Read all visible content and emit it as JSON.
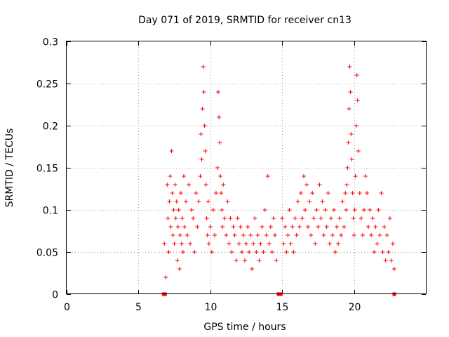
{
  "chart_data": {
    "type": "scatter",
    "title": "Day 071 of 2019, SRMTID for receiver cn13",
    "xlabel": "GPS time / hours",
    "ylabel": "SRMTID / TECUs",
    "xlim": [
      0,
      25
    ],
    "ylim": [
      0,
      0.3
    ],
    "x_ticks": [
      0,
      5,
      10,
      15,
      20
    ],
    "x_tick_labels": [
      "0",
      "5",
      "10",
      "15",
      "20"
    ],
    "y_ticks": [
      0,
      0.05,
      0.1,
      0.15,
      0.2,
      0.25,
      0.3
    ],
    "y_tick_labels": [
      "0",
      "0.05",
      "0.1",
      "0.15",
      "0.2",
      "0.25",
      "0.3"
    ],
    "grid": true,
    "marker": "plus",
    "color": "#ff0000",
    "zero_markers": [
      6.75,
      6.85,
      14.75,
      14.85,
      14.9,
      22.8
    ],
    "series": [
      {
        "name": "SRMTID",
        "x": [
          6.8,
          6.9,
          7.0,
          7.05,
          7.1,
          7.15,
          7.2,
          7.25,
          7.3,
          7.35,
          7.4,
          7.45,
          7.5,
          7.55,
          7.6,
          7.65,
          7.7,
          7.75,
          7.8,
          7.85,
          7.9,
          7.95,
          8.0,
          8.05,
          8.1,
          8.15,
          8.2,
          8.3,
          8.4,
          8.5,
          8.6,
          8.7,
          8.8,
          8.9,
          9.0,
          9.1,
          9.2,
          9.3,
          9.35,
          9.4,
          9.45,
          9.5,
          9.55,
          9.6,
          9.65,
          9.7,
          9.75,
          9.8,
          9.85,
          9.9,
          10.0,
          10.1,
          10.2,
          10.3,
          10.4,
          10.5,
          10.55,
          10.6,
          10.65,
          10.7,
          10.75,
          10.8,
          10.85,
          10.9,
          11.0,
          11.1,
          11.2,
          11.3,
          11.4,
          11.5,
          11.6,
          11.7,
          11.8,
          11.9,
          12.0,
          12.1,
          12.2,
          12.3,
          12.4,
          12.5,
          12.6,
          12.7,
          12.8,
          12.9,
          13.0,
          13.1,
          13.2,
          13.3,
          13.4,
          13.5,
          13.6,
          13.7,
          13.8,
          13.9,
          14.0,
          14.1,
          14.2,
          14.3,
          14.4,
          14.5,
          14.6,
          15.0,
          15.1,
          15.2,
          15.3,
          15.4,
          15.5,
          15.6,
          15.7,
          15.8,
          15.9,
          16.0,
          16.1,
          16.2,
          16.3,
          16.4,
          16.5,
          16.6,
          16.7,
          16.8,
          16.9,
          17.0,
          17.1,
          17.2,
          17.3,
          17.4,
          17.5,
          17.6,
          17.7,
          17.8,
          17.9,
          18.0,
          18.1,
          18.2,
          18.3,
          18.4,
          18.5,
          18.6,
          18.7,
          18.8,
          18.9,
          19.0,
          19.1,
          19.2,
          19.3,
          19.4,
          19.45,
          19.5,
          19.55,
          19.6,
          19.65,
          19.7,
          19.75,
          19.8,
          19.85,
          19.9,
          19.95,
          20.0,
          20.05,
          20.1,
          20.15,
          20.2,
          20.25,
          20.3,
          20.4,
          20.5,
          20.6,
          20.7,
          20.8,
          20.9,
          21.0,
          21.1,
          21.2,
          21.3,
          21.4,
          21.5,
          21.6,
          21.7,
          21.8,
          21.9,
          22.0,
          22.1,
          22.2,
          22.3,
          22.4,
          22.5,
          22.6,
          22.7,
          22.8
        ],
        "y": [
          0.06,
          0.02,
          0.13,
          0.09,
          0.05,
          0.11,
          0.14,
          0.08,
          0.17,
          0.12,
          0.07,
          0.1,
          0.06,
          0.13,
          0.09,
          0.11,
          0.04,
          0.08,
          0.1,
          0.03,
          0.07,
          0.12,
          0.06,
          0.09,
          0.05,
          0.14,
          0.08,
          0.11,
          0.07,
          0.13,
          0.06,
          0.1,
          0.09,
          0.05,
          0.12,
          0.08,
          0.11,
          0.14,
          0.19,
          0.16,
          0.22,
          0.27,
          0.24,
          0.2,
          0.17,
          0.13,
          0.09,
          0.07,
          0.11,
          0.06,
          0.08,
          0.05,
          0.1,
          0.07,
          0.12,
          0.15,
          0.24,
          0.21,
          0.18,
          0.14,
          0.12,
          0.1,
          0.08,
          0.13,
          0.09,
          0.07,
          0.11,
          0.06,
          0.09,
          0.05,
          0.08,
          0.07,
          0.04,
          0.09,
          0.06,
          0.08,
          0.05,
          0.07,
          0.04,
          0.06,
          0.08,
          0.05,
          0.07,
          0.03,
          0.06,
          0.09,
          0.05,
          0.07,
          0.04,
          0.06,
          0.08,
          0.05,
          0.1,
          0.07,
          0.14,
          0.06,
          0.08,
          0.05,
          0.09,
          0.07,
          0.04,
          0.09,
          0.06,
          0.08,
          0.05,
          0.07,
          0.1,
          0.06,
          0.08,
          0.05,
          0.09,
          0.07,
          0.11,
          0.08,
          0.12,
          0.09,
          0.14,
          0.1,
          0.13,
          0.08,
          0.11,
          0.07,
          0.12,
          0.09,
          0.06,
          0.1,
          0.08,
          0.13,
          0.09,
          0.11,
          0.07,
          0.1,
          0.08,
          0.12,
          0.06,
          0.09,
          0.07,
          0.1,
          0.05,
          0.08,
          0.06,
          0.09,
          0.07,
          0.11,
          0.08,
          0.12,
          0.1,
          0.13,
          0.15,
          0.18,
          0.22,
          0.27,
          0.24,
          0.19,
          0.16,
          0.12,
          0.09,
          0.07,
          0.1,
          0.14,
          0.2,
          0.26,
          0.23,
          0.17,
          0.12,
          0.09,
          0.07,
          0.1,
          0.14,
          0.12,
          0.08,
          0.1,
          0.07,
          0.09,
          0.05,
          0.08,
          0.06,
          0.1,
          0.07,
          0.12,
          0.05,
          0.08,
          0.04,
          0.07,
          0.05,
          0.09,
          0.04,
          0.06,
          0.03
        ]
      }
    ]
  }
}
